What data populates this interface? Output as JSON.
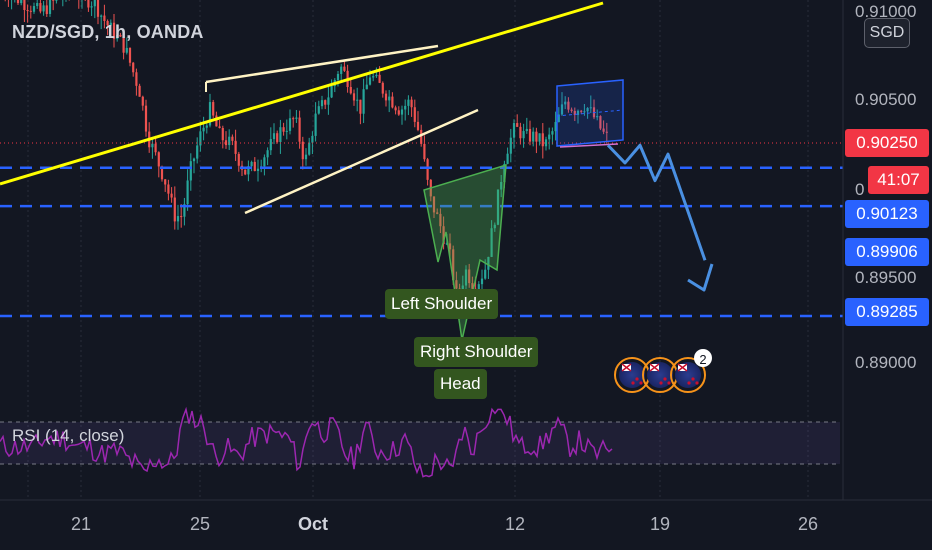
{
  "header": {
    "symbol_title": "NZD/SGD, 1h, OANDA",
    "currency_button": "SGD"
  },
  "price_axis": {
    "labels": [
      {
        "value": 0.91,
        "text": "0.91000"
      },
      {
        "value": 0.905,
        "text": "0.90500"
      },
      {
        "value": 0.895,
        "text": "0.89500"
      },
      {
        "value": 0.89,
        "text": "0.89000"
      }
    ],
    "current_price": {
      "value": 0.9025,
      "text": "0.90250",
      "color": "#f23645"
    },
    "countdown": {
      "text": "41:07",
      "color": "#f23645"
    },
    "level_tags": [
      {
        "value": 0.90123,
        "text": "0.90123",
        "color": "#2962ff"
      },
      {
        "value": 0.89906,
        "text": "0.89906",
        "color": "#2962ff"
      },
      {
        "value": 0.89285,
        "text": "0.89285",
        "color": "#2962ff"
      }
    ]
  },
  "time_axis": {
    "labels": [
      {
        "text": "21",
        "bold": false
      },
      {
        "text": "25",
        "bold": false
      },
      {
        "text": "Oct",
        "bold": true
      },
      {
        "text": "12",
        "bold": false
      },
      {
        "text": "19",
        "bold": false
      },
      {
        "text": "26",
        "bold": false
      }
    ]
  },
  "annotations": {
    "left_shoulder": "Left Shoulder",
    "right_shoulder": "Right Shoulder",
    "head": "Head"
  },
  "events": {
    "badge_count": "2",
    "icon": "nz-flag-icon"
  },
  "rsi": {
    "label": "RSI (14, close)",
    "upper_level": 70,
    "lower_level": 30
  },
  "colors": {
    "background": "#131722",
    "up_candle": "#26a69a",
    "down_candle": "#ef5350",
    "trendline_yellow": "#ffff00",
    "wedge_lines": "#fff3c4",
    "dashed_levels": "#2962ff",
    "projection_arrow": "#4a90e2",
    "rsi_line": "#9c27b0",
    "annotation_bg": "#33561f"
  },
  "chart_data": {
    "type": "candlestick",
    "title": "NZD/SGD, 1h, OANDA",
    "ylim": [
      0.8872,
      0.9112
    ],
    "price_path": [
      [
        0,
        0.9114
      ],
      [
        40,
        0.91
      ],
      [
        70,
        0.9113
      ],
      [
        95,
        0.9105
      ],
      [
        105,
        0.9095
      ],
      [
        125,
        0.908
      ],
      [
        140,
        0.9055
      ],
      [
        148,
        0.903
      ],
      [
        155,
        0.902
      ],
      [
        165,
        0.9005
      ],
      [
        175,
        0.8985
      ],
      [
        182,
        0.8985
      ],
      [
        190,
        0.901
      ],
      [
        200,
        0.903
      ],
      [
        210,
        0.9045
      ],
      [
        220,
        0.903
      ],
      [
        232,
        0.9025
      ],
      [
        245,
        0.901
      ],
      [
        255,
        0.9013
      ],
      [
        265,
        0.902
      ],
      [
        280,
        0.9033
      ],
      [
        295,
        0.904
      ],
      [
        305,
        0.9015
      ],
      [
        315,
        0.904
      ],
      [
        330,
        0.9055
      ],
      [
        340,
        0.907
      ],
      [
        350,
        0.906
      ],
      [
        360,
        0.9045
      ],
      [
        370,
        0.9065
      ],
      [
        385,
        0.9055
      ],
      [
        400,
        0.9045
      ],
      [
        410,
        0.905
      ],
      [
        420,
        0.903
      ],
      [
        430,
        0.8995
      ],
      [
        440,
        0.898
      ],
      [
        450,
        0.8962
      ],
      [
        458,
        0.8935
      ],
      [
        465,
        0.8955
      ],
      [
        475,
        0.8945
      ],
      [
        485,
        0.8955
      ],
      [
        495,
        0.8985
      ],
      [
        505,
        0.902
      ],
      [
        515,
        0.9035
      ],
      [
        525,
        0.903
      ],
      [
        535,
        0.903
      ],
      [
        545,
        0.9025
      ],
      [
        555,
        0.9035
      ],
      [
        565,
        0.905
      ],
      [
        575,
        0.9045
      ],
      [
        585,
        0.9048
      ],
      [
        595,
        0.904
      ],
      [
        605,
        0.903
      ],
      [
        612,
        0.9028
      ]
    ],
    "levels": [
      0.90123,
      0.89906,
      0.89285
    ],
    "projection": [
      [
        608,
        0.9025
      ],
      [
        625,
        0.9015
      ],
      [
        640,
        0.9025
      ],
      [
        655,
        0.9005
      ],
      [
        668,
        0.902
      ],
      [
        705,
        0.896
      ],
      [
        710,
        0.8975
      ]
    ]
  }
}
